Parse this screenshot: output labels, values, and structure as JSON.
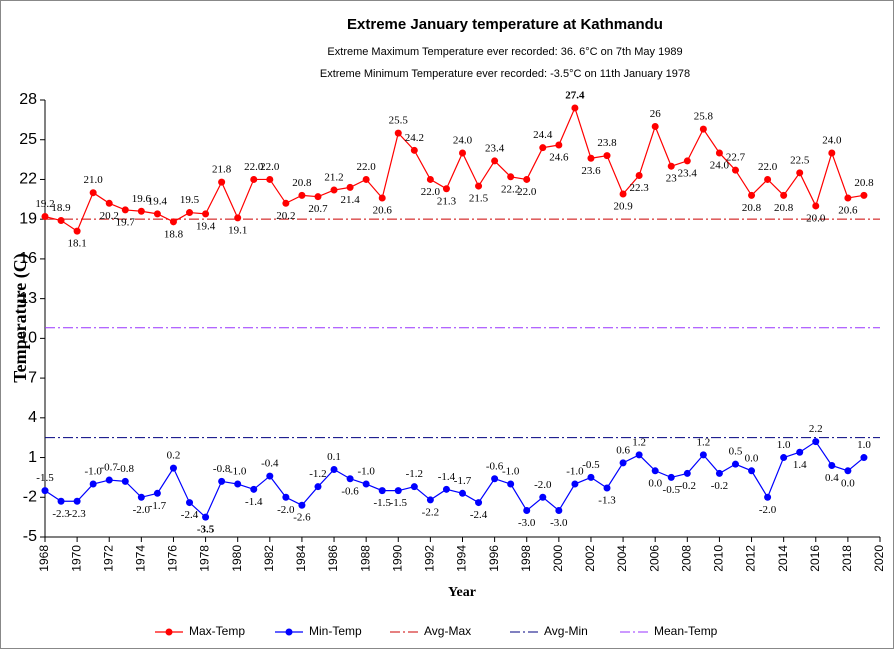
{
  "chart_data": {
    "type": "line",
    "title": "Extreme  January temperature at Kathmandu",
    "subtitles": [
      "Extreme Maximum Temperature ever recorded: 36. 6°C on 7th May 1989",
      "Extreme Minimum Temperature ever recorded: -3.5°C on 11th January 1978"
    ],
    "x_label": "Year",
    "y_label": "Temperature  (C)",
    "x": [
      1968,
      1969,
      1970,
      1971,
      1972,
      1973,
      1974,
      1975,
      1976,
      1977,
      1978,
      1979,
      1980,
      1981,
      1982,
      1983,
      1984,
      1985,
      1986,
      1987,
      1988,
      1989,
      1990,
      1991,
      1992,
      1993,
      1994,
      1995,
      1996,
      1997,
      1998,
      1999,
      2000,
      2001,
      2002,
      2003,
      2004,
      2005,
      2006,
      2007,
      2008,
      2009,
      2010,
      2011,
      2012,
      2013,
      2014,
      2015,
      2016,
      2017,
      2018,
      2019
    ],
    "series": [
      {
        "name": "Max-Temp",
        "color": "#ff0000",
        "values": [
          19.2,
          18.9,
          18.1,
          21.0,
          20.2,
          19.7,
          19.6,
          19.4,
          18.8,
          19.5,
          19.4,
          21.8,
          19.1,
          22.0,
          22.0,
          20.2,
          20.8,
          20.7,
          21.2,
          21.4,
          22.0,
          20.6,
          25.5,
          24.2,
          22.0,
          21.3,
          24.0,
          21.5,
          23.4,
          22.2,
          22.0,
          24.4,
          24.6,
          27.4,
          23.6,
          23.8,
          20.9,
          22.3,
          26,
          23,
          23.4,
          25.8,
          24.0,
          22.7,
          20.8,
          22.0,
          20.8,
          22.5,
          20.0,
          24.0,
          20.6,
          20.8
        ],
        "value_labels": [
          "19.2",
          "18.9",
          "18.1",
          "21.0",
          "20.2",
          "19.7",
          "19.6",
          "19.4",
          "18.8",
          "19.5",
          "19.4",
          "21.8",
          "19.1",
          "22.0",
          "22.0",
          "20.2",
          "20.8",
          "20.7",
          "21.2",
          "21.4",
          "22.0",
          "20.6",
          "25.5",
          "24.2",
          "22.0",
          "21.3",
          "24.0",
          "21.5",
          "23.4",
          "22.2",
          "22.0",
          "24.4",
          "24.6",
          "27.4",
          "23.6",
          "23.8",
          "20.9",
          "22.3",
          "26",
          "23",
          "23.4",
          "25.8",
          "24.0",
          "22.7",
          "20.8",
          "22.0",
          "20.8",
          "22.5",
          "20.0",
          "24.0",
          "20.6",
          "20.8"
        ]
      },
      {
        "name": "Min-Temp",
        "color": "#0000ff",
        "values": [
          -1.5,
          -2.3,
          -2.3,
          -1.0,
          -0.7,
          -0.8,
          -2.0,
          -1.7,
          0.2,
          -2.4,
          -3.5,
          -0.8,
          -1.0,
          -1.4,
          -0.4,
          -2.0,
          -2.6,
          -1.2,
          0.1,
          -0.6,
          -1.0,
          -1.5,
          -1.5,
          -1.2,
          -2.2,
          -1.4,
          -1.7,
          -2.4,
          -0.6,
          -1.0,
          -3.0,
          -2.0,
          -3.0,
          -1.0,
          -0.5,
          -1.3,
          0.6,
          1.2,
          0.0,
          -0.5,
          -0.2,
          1.2,
          -0.2,
          0.5,
          0.0,
          -2.0,
          1.0,
          1.4,
          2.2,
          0.4,
          0.0,
          1.0
        ],
        "value_labels": [
          "-1.5",
          "-2.3",
          "-2.3",
          "-1.0",
          "-0.7",
          "-0.8",
          "-2.0",
          "-1.7",
          "0.2",
          "-2.4",
          "-3.5",
          "-0.8",
          "-1.0",
          "-1.4",
          "-0.4",
          "-2.0",
          "-2.6",
          "-1.2",
          "0.1",
          "-0.6",
          "-1.0",
          "-1.5",
          "-1.5",
          "-1.2",
          "-2.2",
          "-1.4",
          "-1.7",
          "-2.4",
          "-0.6",
          "-1.0",
          "-3.0",
          "-2.0",
          "-3.0",
          "-1.0",
          "-0.5",
          "-1.3",
          "0.6",
          "1.2",
          "0.0",
          "-0.5",
          "-0.2",
          "1.2",
          "-0.2",
          "0.5",
          "0.0",
          "-2.0",
          "1.0",
          "1.4",
          "2.2",
          "0.4",
          "0.0",
          "1.0"
        ]
      }
    ],
    "reference_lines": [
      {
        "name": "Avg-Max",
        "value": 19,
        "color": "#cc0000"
      },
      {
        "name": "Avg-Min",
        "value": 2.5,
        "color": "#000080"
      },
      {
        "name": "Mean-Temp",
        "value": 10.8,
        "color": "#9933ff"
      }
    ],
    "xlim": [
      1968,
      2020
    ],
    "xticks": [
      1968,
      1970,
      1972,
      1974,
      1976,
      1978,
      1980,
      1982,
      1984,
      1986,
      1988,
      1990,
      1992,
      1994,
      1996,
      1998,
      2000,
      2002,
      2004,
      2006,
      2008,
      2010,
      2012,
      2014,
      2016,
      2018,
      2020
    ],
    "ylim": [
      -5,
      28
    ],
    "yticks": [
      -5,
      -2,
      1,
      4,
      7,
      10,
      13,
      16,
      19,
      22,
      25,
      28
    ],
    "legend": "bottom"
  }
}
